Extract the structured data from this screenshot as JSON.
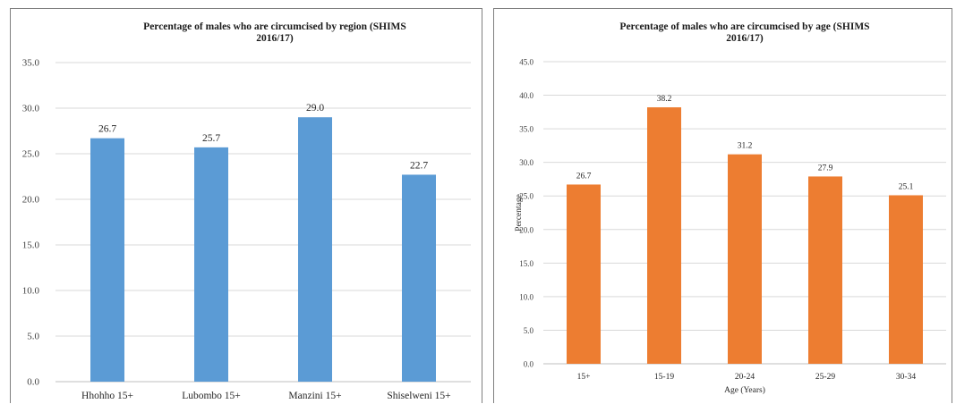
{
  "chart_data": [
    {
      "type": "bar",
      "title": "Percentage of males who are circumcised by region (SHIMS 2016/17)",
      "title_lines": [
        "Percentage of males who are circumcised by region (SHIMS",
        "2016/17)"
      ],
      "categories": [
        "Hhohho 15+",
        "Lubombo 15+",
        "Manzini 15+",
        "Shiselweni 15+"
      ],
      "values": [
        26.7,
        25.7,
        29.0,
        22.7
      ],
      "value_labels": [
        "26.7",
        "25.7",
        "29.0",
        "22.7"
      ],
      "yticks": [
        "0.0",
        "5.0",
        "10.0",
        "15.0",
        "20.0",
        "25.0",
        "30.0",
        "35.0"
      ],
      "ylim": [
        0,
        35
      ],
      "ystep": 5,
      "xlabel": "",
      "ylabel": "",
      "bar_color": "#5b9bd5",
      "grid": true,
      "legend": "none"
    },
    {
      "type": "bar",
      "title": "Percentage of males who are circumcised by age (SHIMS 2016/17)",
      "title_lines": [
        "Percentage of males who are circumcised by age (SHIMS",
        "2016/17)"
      ],
      "categories": [
        "15+",
        "15-19",
        "20-24",
        "25-29",
        "30-34"
      ],
      "values": [
        26.7,
        38.2,
        31.2,
        27.9,
        25.1
      ],
      "value_labels": [
        "26.7",
        "38.2",
        "31.2",
        "27.9",
        "25.1"
      ],
      "yticks": [
        "0.0",
        "5.0",
        "10.0",
        "15.0",
        "20.0",
        "25.0",
        "30.0",
        "35.0",
        "40.0",
        "45.0"
      ],
      "ylim": [
        0,
        45
      ],
      "ystep": 5,
      "xlabel": "Age (Years)",
      "ylabel": "Percentage",
      "bar_color": "#ed7d31",
      "grid": true,
      "legend": "none"
    }
  ]
}
